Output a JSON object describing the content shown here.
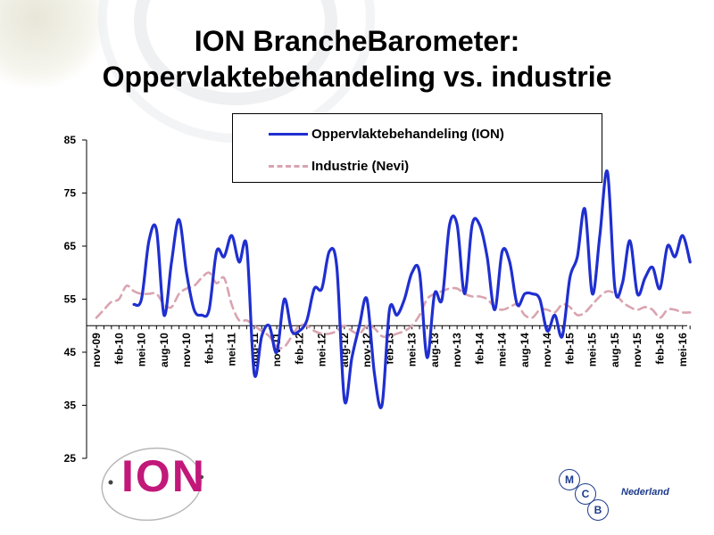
{
  "title": {
    "line1": "ION BrancheBarometer:",
    "line2": "Oppervlaktebehandeling vs. industrie"
  },
  "colors": {
    "ion": "#1f2fd0",
    "nevi": "#d9a4b0",
    "logo_ion": "#c2187a",
    "logo_mcb": "#1d3b8c"
  },
  "logos": {
    "ion": "ION",
    "mcb_letters": [
      "M",
      "C",
      "B"
    ],
    "mcb_country": "Nederland"
  },
  "chart_data": {
    "type": "line",
    "title": "ION BrancheBarometer: Oppervlaktebehandeling vs. industrie",
    "ylim": [
      25,
      85
    ],
    "yticks": [
      25,
      35,
      45,
      55,
      65,
      75,
      85
    ],
    "reference_line": 50,
    "grid": false,
    "legend_position": "top-right",
    "x_tick_labels": [
      "nov-09",
      "feb-10",
      "mei-10",
      "aug-10",
      "nov-10",
      "feb-11",
      "mei-11",
      "aug-11",
      "nov-11",
      "feb-12",
      "mei-12",
      "aug-12",
      "nov-12",
      "feb-13",
      "mei-13",
      "aug-13",
      "nov-13",
      "feb-14",
      "mei-14",
      "aug-14",
      "nov-14",
      "feb-15",
      "mei-15",
      "aug-15",
      "nov-15",
      "feb-16",
      "mei-16"
    ],
    "x": [
      "nov-09",
      "dec-09",
      "jan-10",
      "feb-10",
      "mrt-10",
      "apr-10",
      "mei-10",
      "jun-10",
      "jul-10",
      "aug-10",
      "sep-10",
      "okt-10",
      "nov-10",
      "dec-10",
      "jan-11",
      "feb-11",
      "mrt-11",
      "apr-11",
      "mei-11",
      "jun-11",
      "jul-11",
      "aug-11",
      "sep-11",
      "okt-11",
      "nov-11",
      "dec-11",
      "jan-12",
      "feb-12",
      "mrt-12",
      "apr-12",
      "mei-12",
      "jun-12",
      "jul-12",
      "aug-12",
      "sep-12",
      "okt-12",
      "nov-12",
      "dec-12",
      "jan-13",
      "feb-13",
      "mrt-13",
      "apr-13",
      "mei-13",
      "jun-13",
      "jul-13",
      "aug-13",
      "sep-13",
      "okt-13",
      "nov-13",
      "dec-13",
      "jan-14",
      "feb-14",
      "mrt-14",
      "apr-14",
      "mei-14",
      "jun-14",
      "jul-14",
      "aug-14",
      "sep-14",
      "okt-14",
      "nov-14",
      "dec-14",
      "jan-15",
      "feb-15",
      "mrt-15",
      "apr-15",
      "mei-15",
      "jun-15",
      "jul-15",
      "aug-15",
      "sep-15",
      "okt-15",
      "nov-15",
      "dec-15",
      "jan-16",
      "feb-16",
      "mrt-16",
      "apr-16",
      "mei-16",
      "jun-16"
    ],
    "series": [
      {
        "name": "Oppervlaktebehandeling (ION)",
        "style": "solid",
        "values": [
          null,
          null,
          null,
          null,
          null,
          54,
          55,
          66,
          68,
          52,
          62,
          70,
          60,
          53,
          52,
          53,
          64,
          63,
          67,
          62,
          65,
          41,
          48,
          50,
          45,
          55,
          49,
          49,
          51,
          57,
          57,
          64,
          61,
          36,
          44,
          50,
          55,
          41,
          35,
          53,
          52,
          55,
          60,
          60,
          44,
          56,
          55,
          69,
          69,
          56,
          69,
          69,
          63,
          53,
          64,
          62,
          54,
          56,
          56,
          55,
          49,
          52,
          48,
          59,
          63,
          72,
          56,
          67,
          79,
          57,
          58,
          66,
          56,
          59,
          61,
          57,
          65,
          63,
          67,
          62
        ]
      },
      {
        "name": "Industrie (Nevi)",
        "style": "dashed",
        "values": [
          51.5,
          53,
          54.5,
          55,
          57.5,
          56.5,
          56,
          56,
          56,
          54,
          53.5,
          56,
          57,
          57.5,
          59,
          60,
          58,
          59,
          54,
          51,
          51,
          50,
          49,
          48,
          46,
          46,
          48,
          50,
          50,
          49,
          48.5,
          48.5,
          49,
          50,
          49,
          48.5,
          50,
          49.5,
          48,
          48,
          48.5,
          49,
          50,
          52,
          55,
          56,
          56.5,
          57,
          57,
          56,
          55.5,
          55.5,
          55,
          53.5,
          53,
          53.5,
          54,
          52,
          51.5,
          53,
          53,
          52.5,
          54,
          53.5,
          52,
          52.5,
          54,
          55.5,
          56.5,
          56,
          54.5,
          53.5,
          53,
          53.5,
          53,
          51.5,
          53,
          53,
          52.5,
          52.5
        ]
      }
    ]
  }
}
